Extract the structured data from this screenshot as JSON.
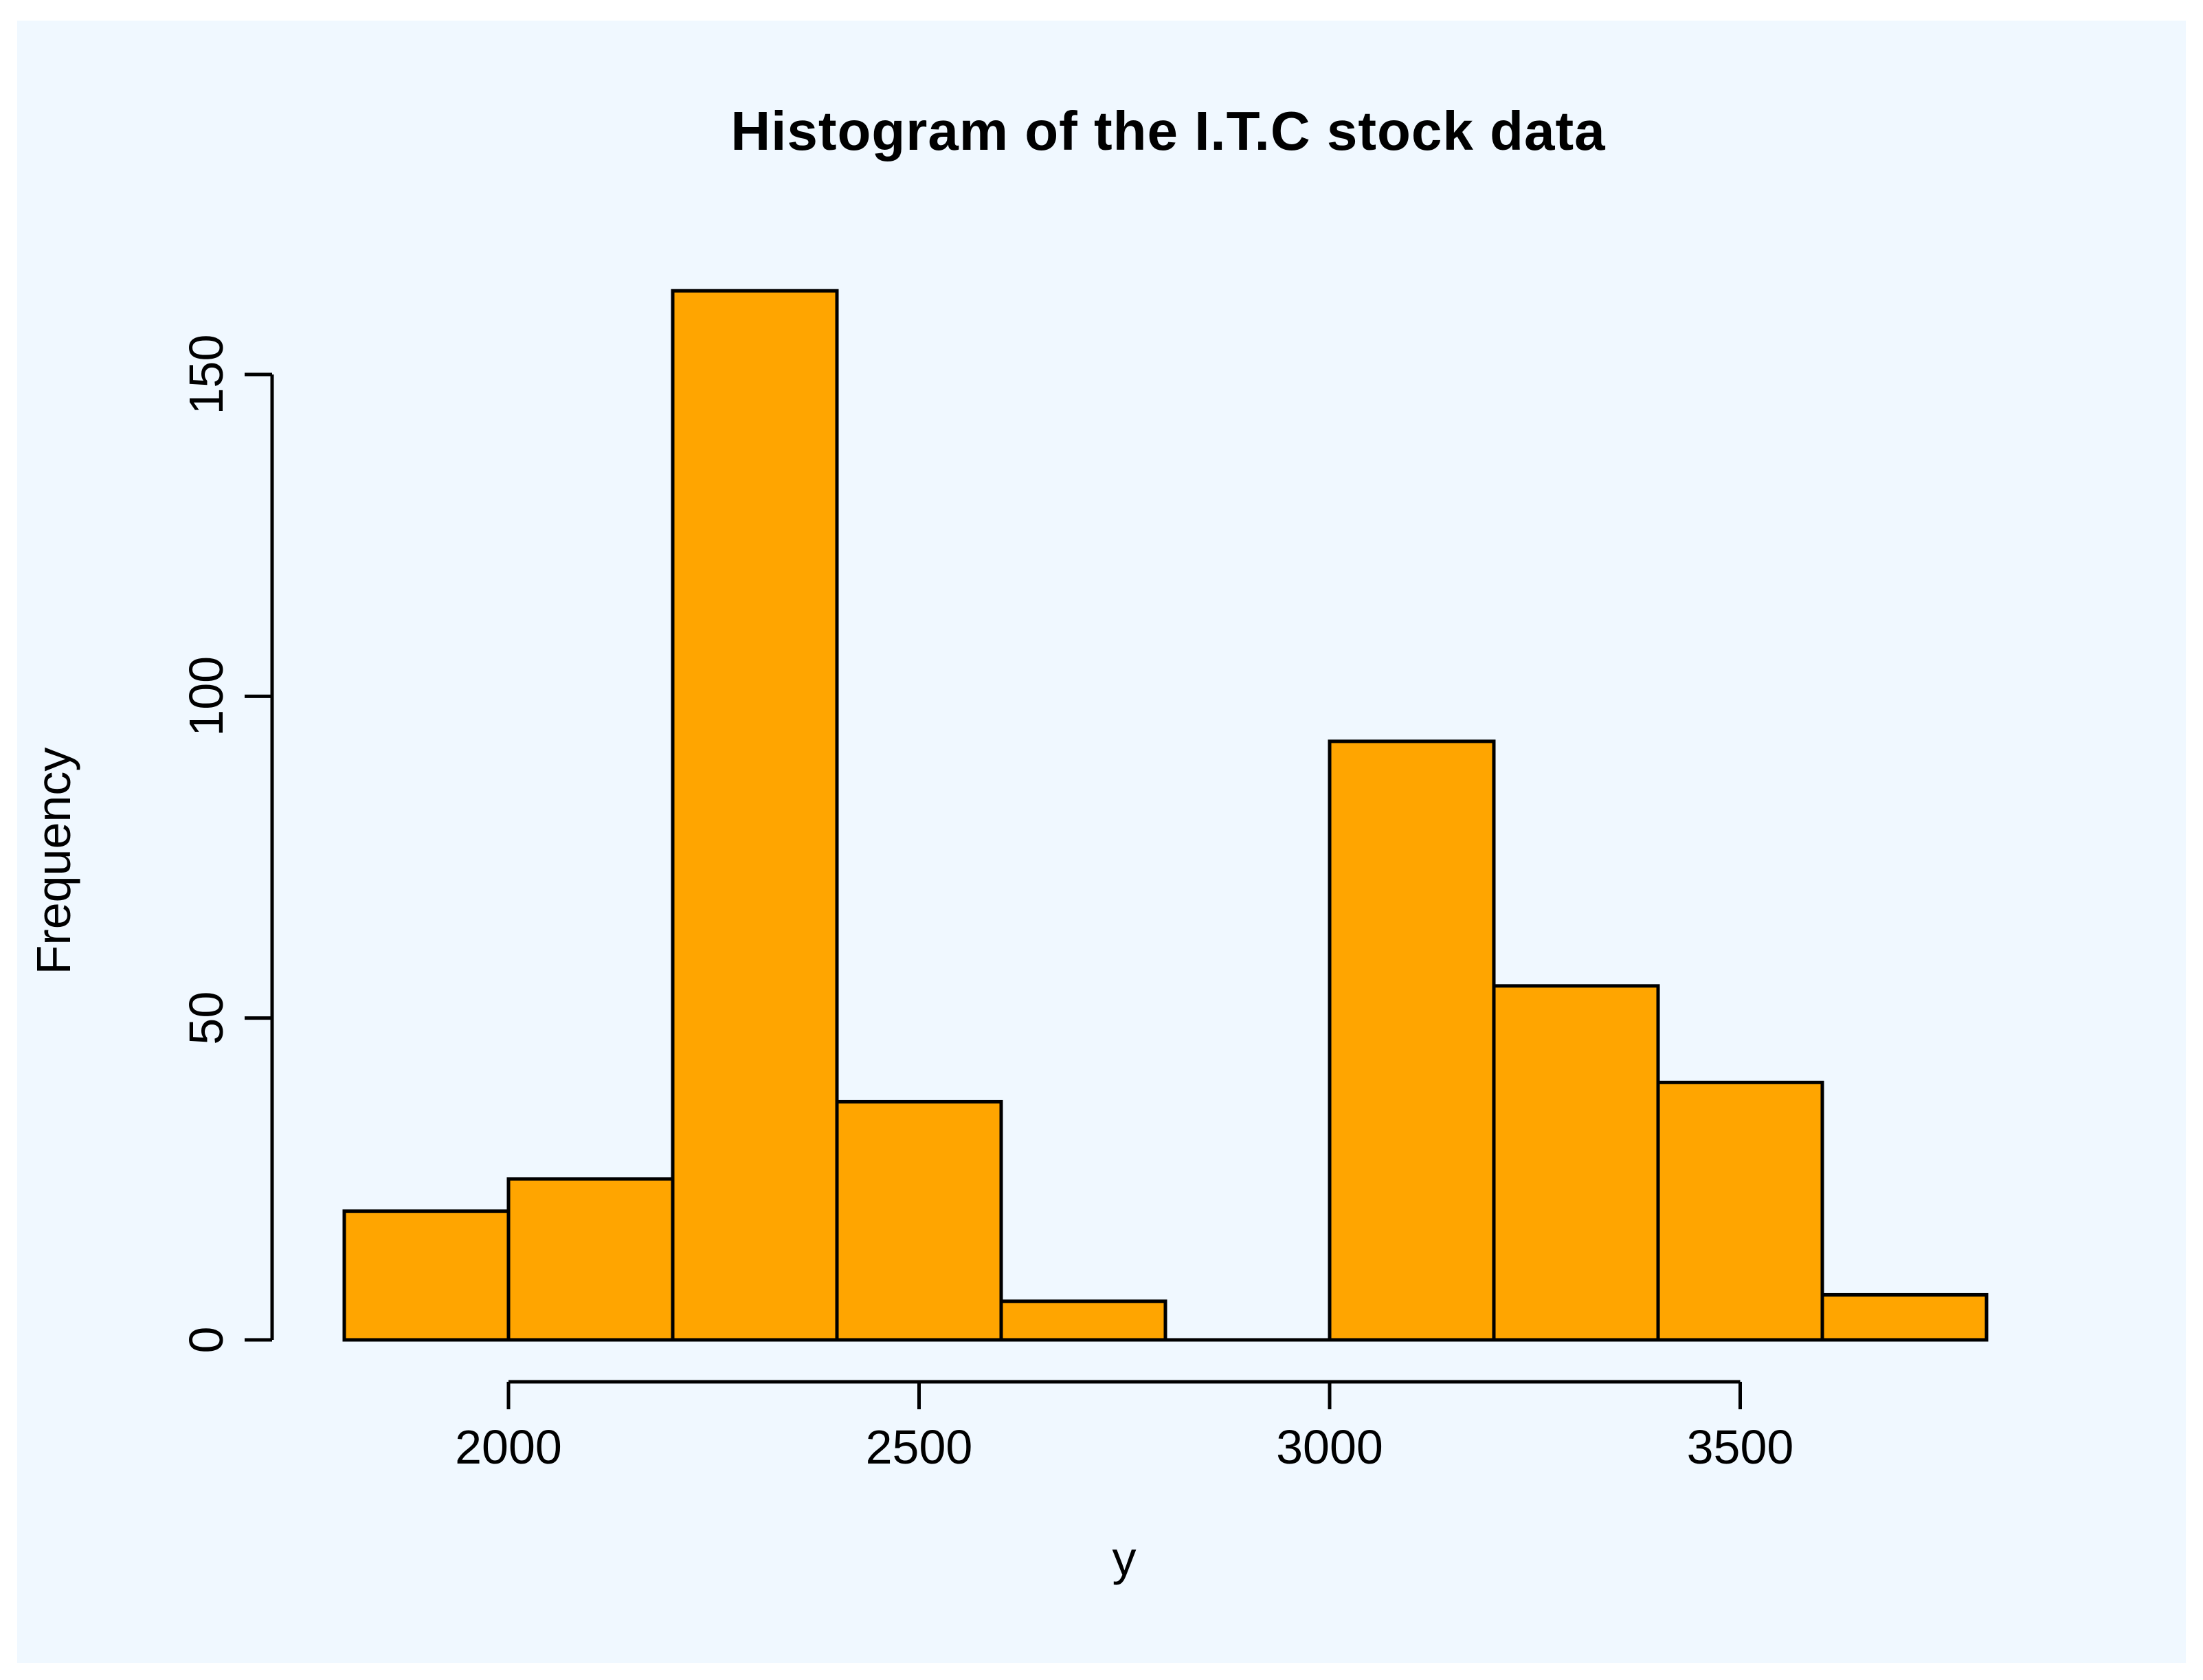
{
  "chart_data": {
    "type": "bar",
    "variant": "histogram",
    "title": "Histogram of the I.T.C stock data",
    "xlabel": "y",
    "ylabel": "Frequency",
    "bin_edges": [
      1800,
      2000,
      2200,
      2400,
      2600,
      2800,
      3000,
      3200,
      3400,
      3600,
      3800
    ],
    "counts": [
      20,
      25,
      163,
      37,
      6,
      0,
      93,
      55,
      40,
      7
    ],
    "x_ticks": [
      2000,
      2500,
      3000,
      3500
    ],
    "y_ticks": [
      0,
      50,
      100,
      150
    ],
    "xlim": [
      1800,
      3800
    ],
    "ylim": [
      0,
      163
    ],
    "grid": "off",
    "legend": "none",
    "colors": {
      "bar_fill": "#FFA500",
      "bar_border": "#000000",
      "axis": "#000000",
      "text": "#000000",
      "panel_bg": "#F0F8FF",
      "outer_bg": "#FFFFFF"
    }
  }
}
